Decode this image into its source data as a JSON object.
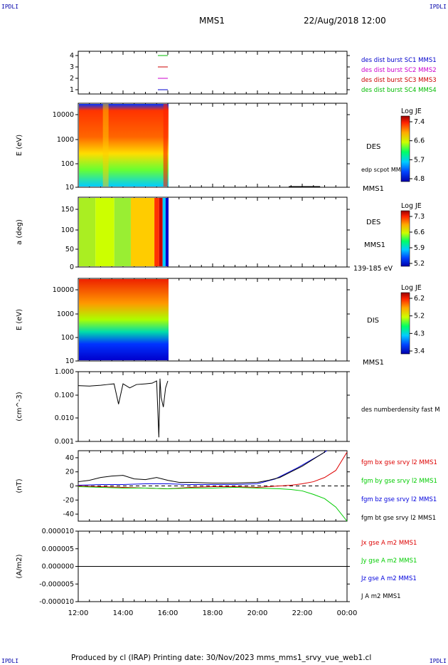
{
  "corners": {
    "tl": "IPDLI",
    "tr": "IPDLI",
    "bl": "IPDLI",
    "br": "IPDLI"
  },
  "header": {
    "spacecraft": "MMS1",
    "datetime": "22/Aug/2018 12:00"
  },
  "footer": "Produced by cl (IRAP)   Printing date: 30/Nov/2023   mms_mms1_srvy_vue_web1.cl",
  "colors": {
    "mms1": "#0000cc",
    "mms2": "#cc00cc",
    "mms3": "#cc0000",
    "mms4": "#00bb00",
    "bx": "#dd0000",
    "by": "#00cc00",
    "bz": "#0000dd",
    "bt": "#000000"
  },
  "chart_data": [
    {
      "type": "line",
      "panel": "spacecraft-id",
      "yticks": [
        "4",
        "3",
        "2",
        "1"
      ],
      "legend": [
        {
          "label": "des dist burst SC1 MMS1",
          "color": "#0000cc"
        },
        {
          "label": "des dist burst SC2 MMS2",
          "color": "#cc00cc"
        },
        {
          "label": "des dist burst SC3 MMS3",
          "color": "#cc0000"
        },
        {
          "label": "des dist burst SC4 MMS4",
          "color": "#00bb00"
        }
      ]
    },
    {
      "type": "heatmap",
      "panel": "electron-energy",
      "ylabel": "E (eV)",
      "yscale": "log",
      "yticks": [
        "10000",
        "1000",
        "100",
        "10"
      ],
      "labels": [
        "DES",
        "edp scpot MMS1",
        "MMS1"
      ],
      "colorbar": {
        "title": "Log JE",
        "ticks": [
          "7.4",
          "6.6",
          "5.7",
          "4.8"
        ]
      },
      "data_extent_hours": [
        12.0,
        16.0
      ]
    },
    {
      "type": "heatmap",
      "panel": "electron-pitch-angle",
      "ylabel": "a (deg)",
      "yticks": [
        "150",
        "100",
        "50",
        "0"
      ],
      "labels": [
        "DES",
        "MMS1",
        "139-185 eV"
      ],
      "colorbar": {
        "title": "Log JE",
        "ticks": [
          "7.3",
          "6.6",
          "5.9",
          "5.2"
        ]
      },
      "data_extent_hours": [
        12.0,
        16.0
      ]
    },
    {
      "type": "heatmap",
      "panel": "ion-energy",
      "ylabel": "E (eV)",
      "yscale": "log",
      "yticks": [
        "10000",
        "1000",
        "100",
        "10"
      ],
      "labels": [
        "DIS",
        "MMS1"
      ],
      "colorbar": {
        "title": "Log JE",
        "ticks": [
          "6.2",
          "5.2",
          "4.3",
          "3.4"
        ]
      },
      "data_extent_hours": [
        12.0,
        16.0
      ]
    },
    {
      "type": "line",
      "panel": "density",
      "ylabel": "(cm^-3)",
      "yscale": "log",
      "yticks": [
        "1.000",
        "0.100",
        "0.010",
        "0.001"
      ],
      "series": [
        {
          "name": "des numberdensity fast M",
          "color": "#000000",
          "x": [
            12.0,
            12.5,
            13.0,
            13.3,
            13.6,
            13.8,
            14.0,
            14.3,
            14.6,
            15.0,
            15.3,
            15.5,
            15.6,
            15.65,
            15.7,
            15.8,
            15.9,
            16.0
          ],
          "y": [
            0.25,
            0.24,
            0.26,
            0.28,
            0.3,
            0.04,
            0.3,
            0.2,
            0.28,
            0.3,
            0.32,
            0.4,
            0.0015,
            0.5,
            0.08,
            0.03,
            0.2,
            0.4
          ]
        }
      ]
    },
    {
      "type": "line",
      "panel": "magnetic-field",
      "ylabel": "(nT)",
      "yticks": [
        "40",
        "20",
        "0",
        "-20",
        "-40"
      ],
      "ylim": [
        -50,
        50
      ],
      "series": [
        {
          "name": "fgm bx gse srvy l2 MMS1",
          "color": "#dd0000",
          "x": [
            12,
            13,
            14,
            15,
            16,
            17,
            18,
            19,
            20,
            21,
            21.5,
            22,
            22.5,
            23,
            23.5,
            24
          ],
          "y": [
            0,
            -1,
            -2,
            -3,
            -4,
            -2,
            -1,
            -1,
            -2,
            0,
            1,
            3,
            6,
            12,
            22,
            48
          ]
        },
        {
          "name": "fgm by gse srvy l2 MMS1",
          "color": "#00cc00",
          "x": [
            12,
            13,
            14,
            15,
            16,
            17,
            18,
            19,
            20,
            21,
            21.5,
            22,
            22.5,
            23,
            23.5,
            24
          ],
          "y": [
            -1,
            -2,
            -3,
            -3,
            -4,
            -3,
            -3,
            -2,
            -3,
            -4,
            -5,
            -7,
            -12,
            -18,
            -30,
            -50
          ]
        },
        {
          "name": "fgm bz gse srvy l2 MMS1",
          "color": "#0000dd",
          "x": [
            12,
            13,
            14,
            15,
            16,
            17,
            18,
            19,
            20,
            20.8,
            21.3,
            21.8,
            22.3,
            22.8,
            23.1
          ],
          "y": [
            1,
            2,
            2,
            3,
            3,
            2,
            2,
            2,
            3,
            10,
            18,
            26,
            35,
            44,
            50
          ]
        },
        {
          "name": "fgm bt gse srvy l2 MMS1",
          "color": "#000000",
          "x": [
            12,
            12.5,
            13,
            13.5,
            14,
            14.5,
            15,
            15.5,
            16,
            16.5,
            17,
            18,
            19,
            20,
            20.5,
            21,
            21.5,
            22,
            22.5,
            23
          ],
          "y": [
            6,
            8,
            12,
            14,
            15,
            10,
            9,
            12,
            8,
            5,
            5,
            4,
            4,
            5,
            8,
            12,
            20,
            28,
            38,
            48
          ]
        }
      ]
    },
    {
      "type": "line",
      "panel": "current-density",
      "ylabel": "(A/m2)",
      "yticks": [
        "0.000010",
        "0.000005",
        "0.000000",
        "-0.000005",
        "-0.000010"
      ],
      "ylim": [
        -1e-05,
        1e-05
      ],
      "series": [
        {
          "name": "Jx gse A m2 MMS1",
          "color": "#dd0000"
        },
        {
          "name": "Jy gse A m2 MMS1",
          "color": "#00cc00"
        },
        {
          "name": "Jz gse A m2 MMS1",
          "color": "#0000dd"
        },
        {
          "name": "J A m2 MMS1",
          "color": "#000000"
        }
      ]
    }
  ],
  "xaxis": {
    "ticks": [
      "12:00",
      "14:00",
      "16:00",
      "18:00",
      "20:00",
      "22:00",
      "00:00"
    ],
    "range_hours": [
      12,
      24
    ]
  }
}
